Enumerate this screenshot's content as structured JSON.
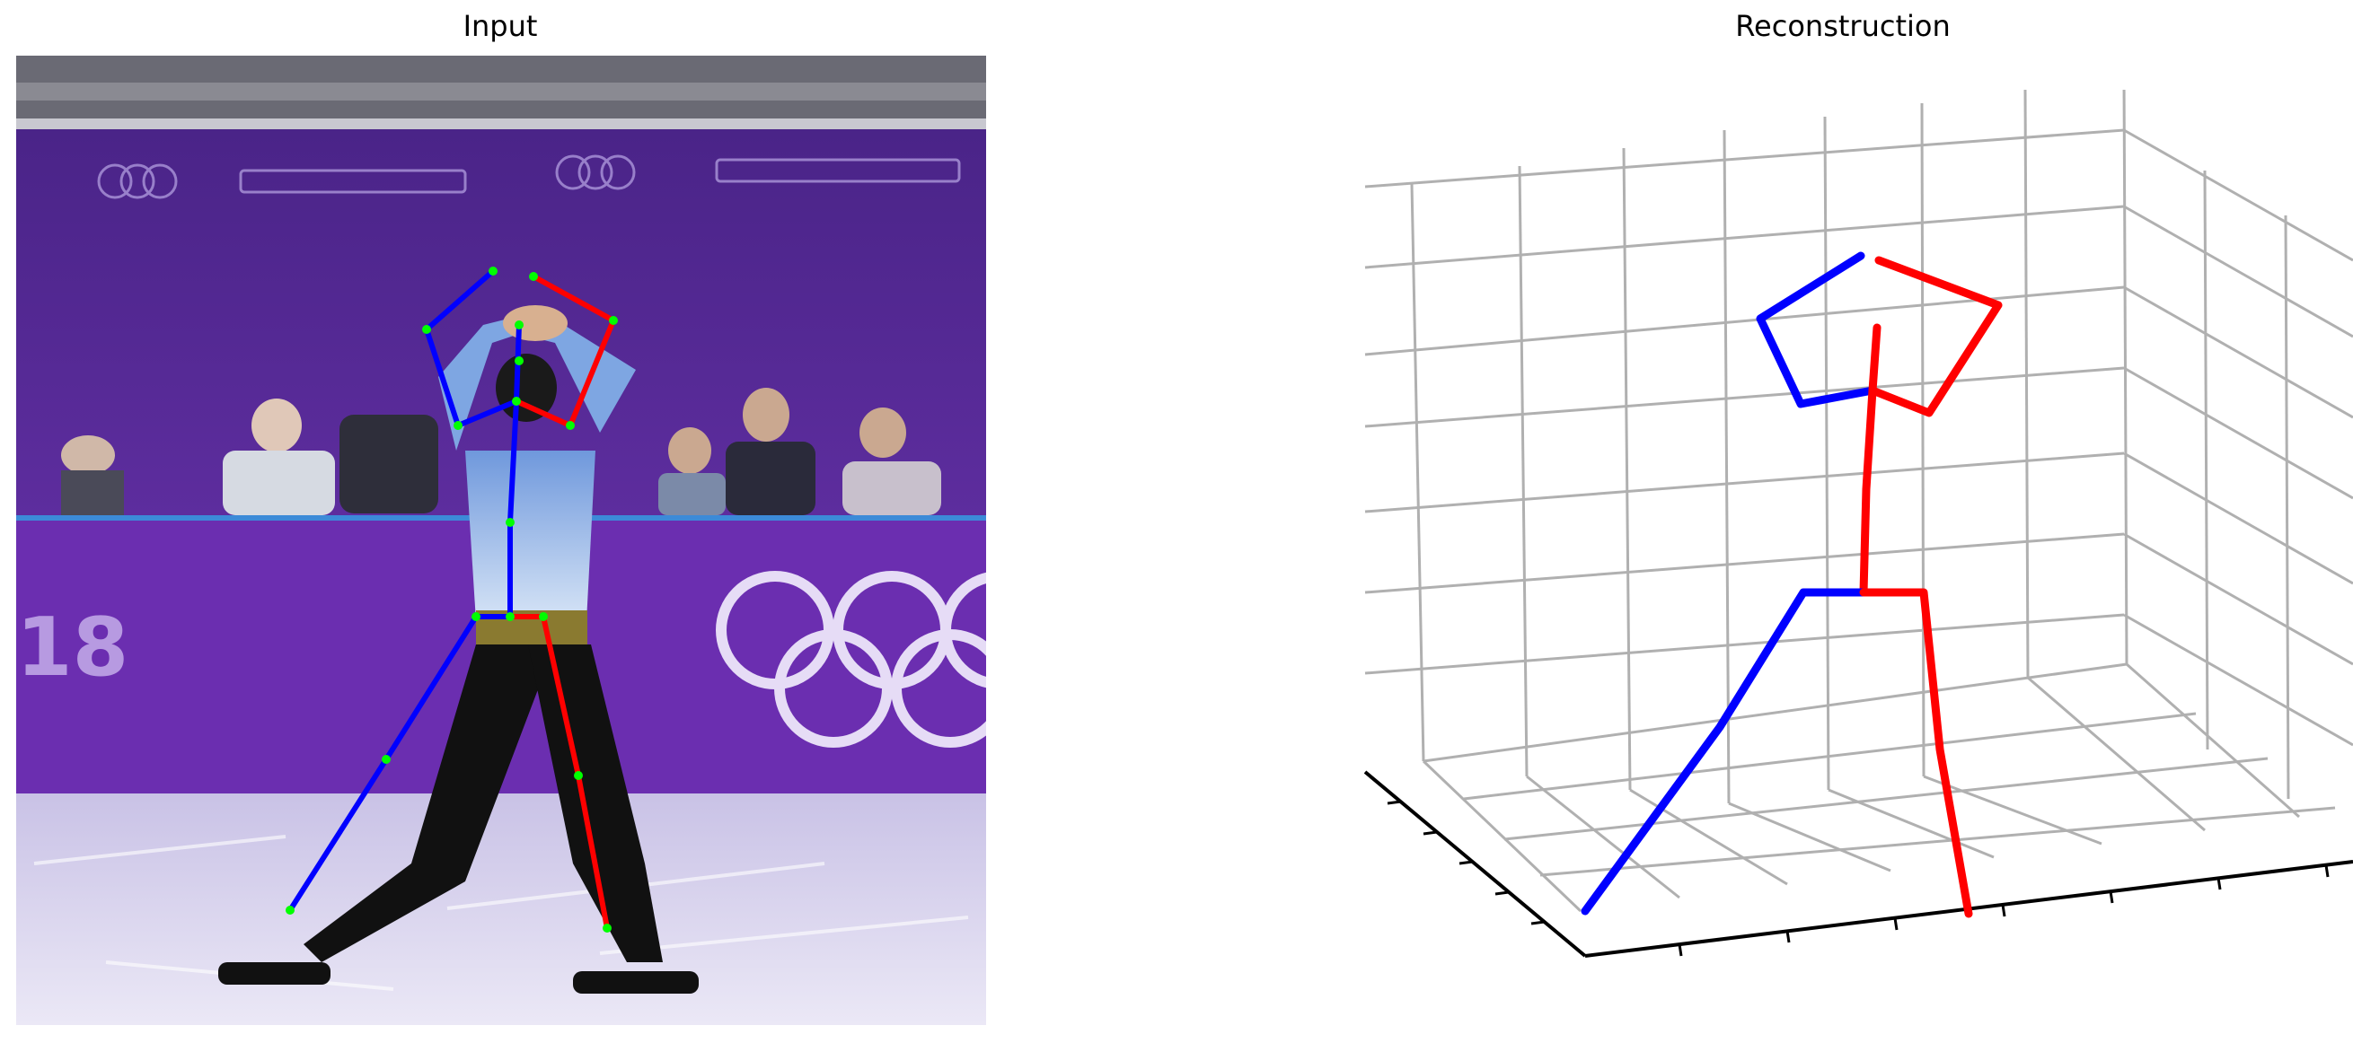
{
  "panels": {
    "left": {
      "title": "Input"
    },
    "right": {
      "title": "Reconstruction"
    }
  },
  "scene": {
    "banner_colors": {
      "wall": "#5a2a9a",
      "wall_dark": "#3d1a74",
      "ice": "#dcd8f0",
      "crowd": "#5a5a66"
    },
    "skater": {
      "shirt": "#8fb4e8",
      "pants": "#111111",
      "belt": "#8a7a30",
      "skin": "#d8b090"
    }
  },
  "skeleton_colors": {
    "left_side": "#0000ff",
    "right_side": "#ff0000",
    "joint": "#00ff00"
  },
  "plot_style": {
    "grid": "#b0b0b0",
    "axis": "#000000"
  }
}
